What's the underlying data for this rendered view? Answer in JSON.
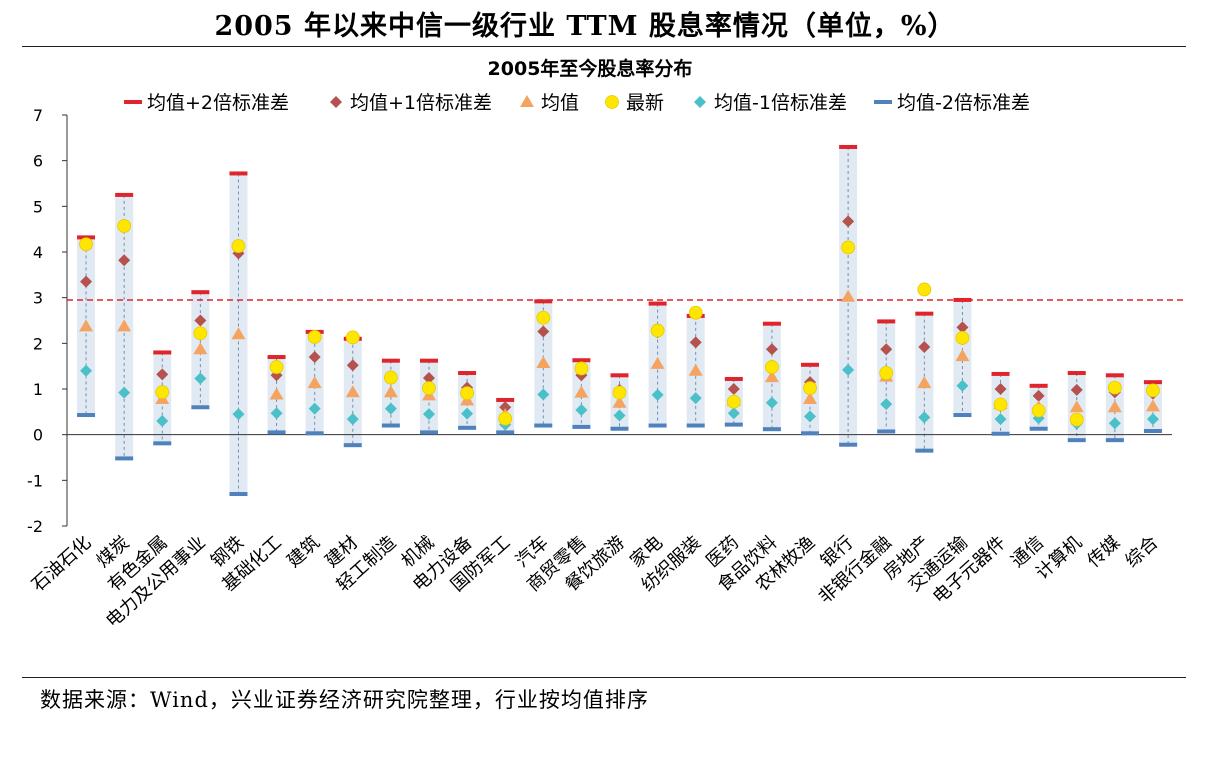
{
  "header": {
    "title": "2005 年以来中信一级行业 TTM 股息率情况（单位，%）"
  },
  "footer": {
    "source": "数据来源：Wind，兴业证券经济研究院整理，行业按均值排序"
  },
  "chart_data": {
    "type": "scatter",
    "title": "2005年至今股息率分布",
    "xlabel": "",
    "ylabel": "",
    "ylim": [
      -2,
      7
    ],
    "yticks": [
      -2,
      -1,
      0,
      1,
      2,
      3,
      4,
      5,
      6,
      7
    ],
    "reference_line": {
      "value": 2.95,
      "style": "dashed",
      "color": "#e0242b"
    },
    "legend_position": "top",
    "categories": [
      "石油石化",
      "煤炭",
      "有色金属",
      "电力及公用事业",
      "钢铁",
      "基础化工",
      "建筑",
      "建材",
      "轻工制造",
      "机械",
      "电力设备",
      "国防军工",
      "汽车",
      "商贸零售",
      "餐饮旅游",
      "家电",
      "纺织服装",
      "医药",
      "食品饮料",
      "农林牧渔",
      "银行",
      "非银行金融",
      "房地产",
      "交通运输",
      "电子元器件",
      "通信",
      "计算机",
      "传媒",
      "综合"
    ],
    "series": [
      {
        "name": "均值+2倍标准差",
        "marker": "dash",
        "color": "#e0242b",
        "values": [
          4.32,
          5.25,
          1.8,
          3.12,
          5.72,
          1.7,
          2.25,
          2.1,
          1.62,
          1.62,
          1.35,
          0.76,
          2.92,
          1.63,
          1.3,
          2.87,
          2.6,
          1.22,
          2.43,
          1.53,
          6.3,
          2.48,
          2.65,
          2.95,
          1.33,
          1.07,
          1.35,
          1.3,
          1.15
        ]
      },
      {
        "name": "均值+1倍标准差",
        "marker": "diamond",
        "color": "#b5524e",
        "values": [
          3.35,
          3.82,
          1.32,
          2.5,
          3.97,
          1.3,
          1.7,
          1.52,
          1.27,
          1.24,
          1.03,
          0.6,
          2.26,
          1.3,
          0.98,
          2.24,
          2.02,
          1.0,
          1.87,
          1.15,
          4.67,
          1.87,
          1.92,
          2.35,
          1.0,
          0.85,
          0.98,
          0.93,
          0.9
        ]
      },
      {
        "name": "均值",
        "marker": "triangle",
        "color": "#f4a460",
        "values": [
          2.37,
          2.37,
          0.78,
          1.87,
          2.2,
          0.88,
          1.13,
          0.93,
          0.93,
          0.86,
          0.75,
          0.43,
          1.57,
          0.92,
          0.7,
          1.55,
          1.4,
          0.74,
          1.26,
          0.78,
          3.02,
          1.27,
          1.13,
          1.72,
          0.67,
          0.6,
          0.6,
          0.6,
          0.62
        ]
      },
      {
        "name": "最新",
        "marker": "circle",
        "color": "#ffe600",
        "values": [
          4.17,
          4.57,
          0.93,
          2.22,
          4.13,
          1.48,
          2.14,
          2.13,
          1.25,
          1.02,
          0.91,
          0.35,
          2.56,
          1.45,
          0.92,
          2.28,
          2.67,
          0.72,
          1.48,
          1.02,
          4.1,
          1.35,
          3.18,
          2.12,
          0.66,
          0.53,
          0.33,
          1.03,
          0.97
        ]
      },
      {
        "name": "均值-1倍标准差",
        "marker": "diamond",
        "color": "#4bc0c8",
        "values": [
          1.4,
          0.92,
          0.3,
          1.23,
          0.45,
          0.47,
          0.57,
          0.34,
          0.57,
          0.45,
          0.46,
          0.22,
          0.88,
          0.54,
          0.42,
          0.87,
          0.8,
          0.47,
          0.7,
          0.4,
          1.42,
          0.67,
          0.38,
          1.07,
          0.34,
          0.36,
          0.24,
          0.25,
          0.34
        ]
      },
      {
        "name": "均值-2倍标准差",
        "marker": "dash",
        "color": "#4f81bd",
        "values": [
          0.43,
          -0.52,
          -0.19,
          0.6,
          -1.3,
          0.05,
          0.03,
          -0.23,
          0.2,
          0.05,
          0.15,
          0.05,
          0.2,
          0.17,
          0.13,
          0.2,
          0.2,
          0.22,
          0.12,
          0.03,
          -0.22,
          0.07,
          -0.35,
          0.43,
          0.02,
          0.13,
          -0.12,
          -0.12,
          0.08
        ]
      }
    ]
  }
}
